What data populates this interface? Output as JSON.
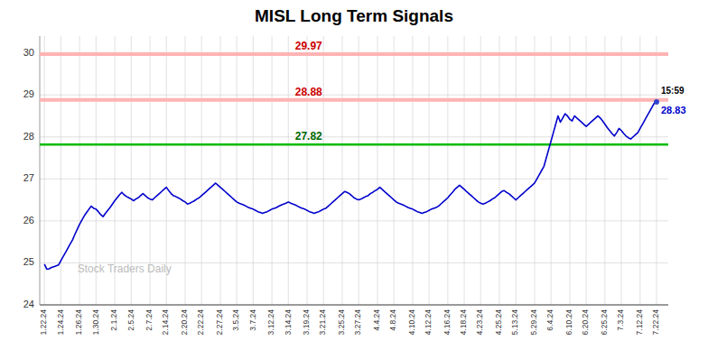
{
  "chart_data": {
    "type": "line",
    "title": "MISL Long Term Signals",
    "color": "#0000cc",
    "background_color": "#ffffff",
    "grid": true,
    "grid_color": "#cccccc",
    "ylim": [
      24,
      30.4
    ],
    "yticks": [
      24,
      25,
      26,
      27,
      28,
      29,
      30
    ],
    "hlines": [
      {
        "value": 29.97,
        "label": "29.97",
        "color": "#ffb3b3",
        "label_color": "#cc0000"
      },
      {
        "value": 28.88,
        "label": "28.88",
        "color": "#ffb3b3",
        "label_color": "#cc0000"
      },
      {
        "value": 27.82,
        "label": "27.82",
        "color": "#00bb00",
        "label_color": "#006600"
      }
    ],
    "last_point": {
      "time_label": "15:59",
      "value_label": "28.83",
      "color": "#3344cc"
    },
    "watermark": "Stock Traders Daily",
    "categories": [
      "1.22.24",
      null,
      null,
      null,
      null,
      null,
      null,
      "1.24.24",
      null,
      null,
      null,
      null,
      null,
      null,
      null,
      "1.26.24",
      null,
      null,
      null,
      null,
      null,
      null,
      "1.30.24",
      null,
      null,
      null,
      null,
      null,
      null,
      null,
      "2.1.24",
      null,
      null,
      null,
      null,
      null,
      null,
      "2.5.24",
      null,
      null,
      null,
      null,
      null,
      null,
      null,
      "2.7.24",
      null,
      null,
      null,
      null,
      null,
      null,
      "2.14.24",
      null,
      null,
      null,
      null,
      null,
      null,
      null,
      "2.20.24",
      null,
      null,
      null,
      null,
      null,
      null,
      "2.22.24",
      null,
      null,
      null,
      null,
      null,
      null,
      null,
      "2.27.24",
      null,
      null,
      null,
      null,
      null,
      null,
      "3.5.24",
      null,
      null,
      null,
      null,
      null,
      null,
      "3.7.24",
      null,
      null,
      null,
      null,
      null,
      null,
      null,
      "3.12.24",
      null,
      null,
      null,
      null,
      null,
      null,
      "3.14.24",
      null,
      null,
      null,
      null,
      null,
      null,
      null,
      "3.19.24",
      null,
      null,
      null,
      null,
      null,
      null,
      "3.21.24",
      null,
      null,
      null,
      null,
      null,
      null,
      null,
      "3.25.24",
      null,
      null,
      null,
      null,
      null,
      null,
      "3.27.24",
      null,
      null,
      null,
      null,
      null,
      null,
      null,
      "4.4.24",
      null,
      null,
      null,
      null,
      null,
      null,
      "4.8.24",
      null,
      null,
      null,
      null,
      null,
      null,
      null,
      "4.10.24",
      null,
      null,
      null,
      null,
      null,
      null,
      "4.12.24",
      null,
      null,
      null,
      null,
      null,
      null,
      null,
      "4.16.24",
      null,
      null,
      null,
      null,
      null,
      null,
      "4.18.24",
      null,
      null,
      null,
      null,
      null,
      null,
      "4.23.24",
      null,
      null,
      null,
      null,
      null,
      null,
      null,
      "4.25.24",
      null,
      null,
      null,
      null,
      null,
      null,
      "5.13.24",
      null,
      null,
      null,
      null,
      null,
      null,
      null,
      "5.29.24",
      null,
      null,
      null,
      null,
      null,
      null,
      "6.4.24",
      null,
      null,
      null,
      null,
      null,
      null,
      null,
      "6.10.24",
      null,
      null,
      null,
      null,
      null,
      null,
      "6.20.24",
      null,
      null,
      null,
      null,
      null,
      null,
      null,
      "6.25.24",
      null,
      null,
      null,
      null,
      null,
      null,
      "7.3.24",
      null,
      null,
      null,
      null,
      null,
      null,
      null,
      "7.12.24",
      null,
      null,
      null,
      null,
      null,
      null,
      "7.22.24"
    ],
    "values": [
      24.97,
      24.85,
      24.86,
      24.89,
      24.91,
      24.93,
      24.95,
      25.05,
      25.15,
      25.25,
      25.35,
      25.45,
      25.55,
      25.68,
      25.8,
      25.92,
      26.02,
      26.12,
      26.2,
      26.28,
      26.35,
      26.3,
      26.28,
      26.22,
      26.15,
      26.1,
      26.18,
      26.25,
      26.32,
      26.4,
      26.48,
      26.55,
      26.62,
      26.68,
      26.62,
      26.58,
      26.55,
      26.52,
      26.48,
      26.52,
      26.55,
      26.6,
      26.65,
      26.6,
      26.55,
      26.52,
      26.5,
      26.55,
      26.6,
      26.65,
      26.7,
      26.75,
      26.8,
      26.72,
      26.65,
      26.6,
      26.58,
      26.55,
      26.52,
      26.48,
      26.45,
      26.4,
      26.42,
      26.45,
      26.48,
      26.52,
      26.55,
      26.6,
      26.65,
      26.7,
      26.75,
      26.8,
      26.85,
      26.9,
      26.85,
      26.8,
      26.75,
      26.7,
      26.65,
      26.6,
      26.55,
      26.5,
      26.45,
      26.42,
      26.4,
      26.38,
      26.35,
      26.32,
      26.3,
      26.28,
      26.25,
      26.22,
      26.2,
      26.18,
      26.2,
      26.22,
      26.25,
      26.28,
      26.3,
      26.32,
      26.35,
      26.38,
      26.4,
      26.42,
      26.45,
      26.42,
      26.4,
      26.38,
      26.35,
      26.32,
      26.3,
      26.28,
      26.25,
      26.22,
      26.2,
      26.18,
      26.2,
      26.22,
      26.25,
      26.28,
      26.3,
      26.35,
      26.4,
      26.45,
      26.5,
      26.55,
      26.6,
      26.65,
      26.7,
      26.68,
      26.65,
      26.6,
      26.55,
      26.52,
      26.5,
      26.52,
      26.55,
      26.58,
      26.6,
      26.65,
      26.68,
      26.72,
      26.75,
      26.8,
      26.75,
      26.7,
      26.65,
      26.6,
      26.55,
      26.5,
      26.45,
      26.42,
      26.4,
      26.38,
      26.35,
      26.32,
      26.3,
      26.28,
      26.25,
      26.22,
      26.2,
      26.18,
      26.2,
      26.22,
      26.25,
      26.28,
      26.3,
      26.32,
      26.35,
      26.4,
      26.45,
      26.5,
      26.55,
      26.62,
      26.68,
      26.75,
      26.8,
      26.85,
      26.8,
      26.75,
      26.7,
      26.65,
      26.6,
      26.55,
      26.5,
      26.45,
      26.42,
      26.4,
      26.42,
      26.45,
      26.48,
      26.52,
      26.55,
      26.6,
      26.65,
      26.7,
      26.72,
      26.68,
      26.65,
      26.6,
      26.55,
      26.5,
      26.55,
      26.6,
      26.65,
      26.7,
      26.75,
      26.8,
      26.85,
      26.9,
      27.0,
      27.1,
      27.2,
      27.3,
      27.5,
      27.7,
      27.9,
      28.1,
      28.3,
      28.5,
      28.35,
      28.45,
      28.55,
      28.5,
      28.42,
      28.38,
      28.5,
      28.45,
      28.4,
      28.35,
      28.3,
      28.25,
      28.3,
      28.35,
      28.4,
      28.45,
      28.5,
      28.45,
      28.38,
      28.3,
      28.22,
      28.15,
      28.08,
      28.02,
      28.1,
      28.2,
      28.15,
      28.08,
      28.02,
      27.98,
      27.95,
      28.0,
      28.05,
      28.1,
      28.2,
      28.3,
      28.4,
      28.5,
      28.6,
      28.7,
      28.8,
      28.83
    ]
  }
}
